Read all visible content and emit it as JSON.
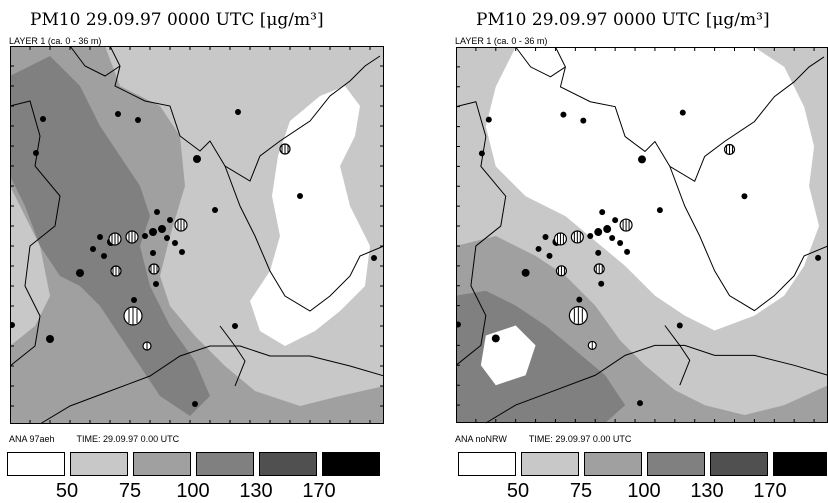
{
  "panels": [
    {
      "title": "PM10 29.09.97 0000 UTC [μg/m³]",
      "layer": "LAYER  1 (ca.  0 - 36 m)",
      "run_label": "ANA  97aeh",
      "time_label": "TIME: 29.09.97  0.00 UTC"
    },
    {
      "title": "PM10 29.09.97 0000 UTC [μg/m³]",
      "layer": "LAYER  1 (ca.  0 - 36 m)",
      "run_label": "ANA  noNRW",
      "time_label": "TIME: 29.09.97  0.00 UTC"
    }
  ],
  "legend": {
    "classes": [
      {
        "color": "#ffffff"
      },
      {
        "color": "#c8c8c8"
      },
      {
        "color": "#a0a0a0"
      },
      {
        "color": "#808080"
      },
      {
        "color": "#505050"
      },
      {
        "color": "#000000"
      }
    ],
    "thresholds": [
      "50",
      "75",
      "100",
      "130",
      "170"
    ]
  },
  "colors": {
    "level_75": "#c8c8c8",
    "level_100": "#a0a0a0",
    "level_130": "#808080",
    "white": "#ffffff",
    "border": "#000000"
  }
}
